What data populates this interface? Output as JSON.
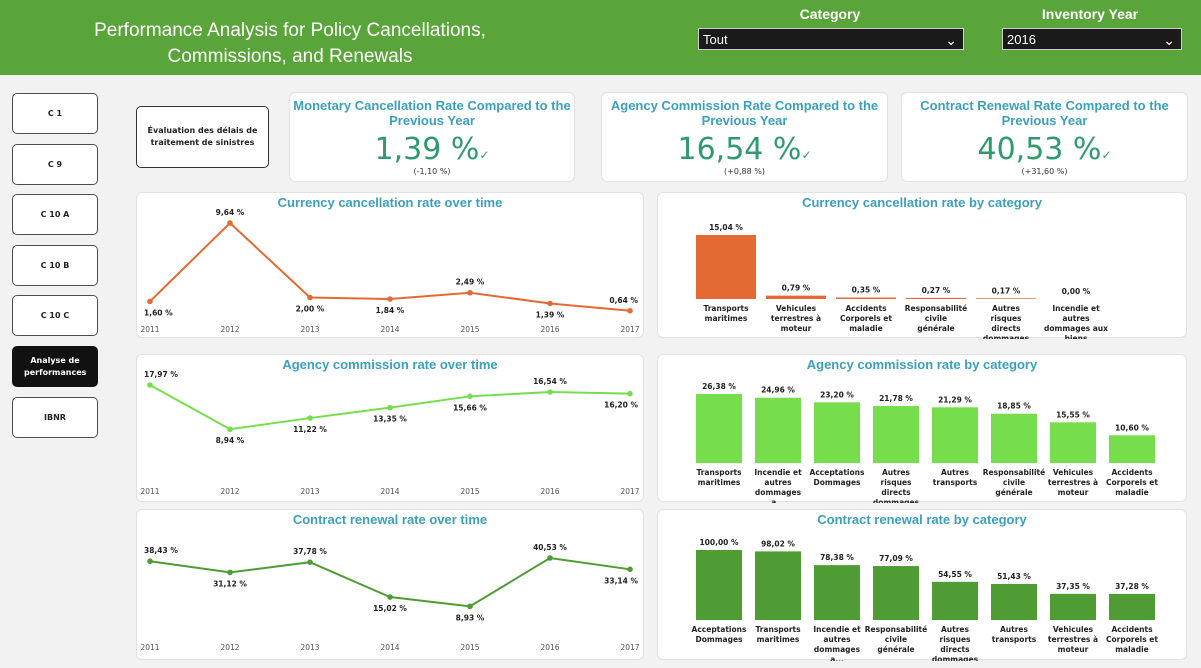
{
  "header": {
    "title_line1": "Performance Analysis for Policy Cancellations,",
    "title_line2": "Commissions, and Renewals",
    "category_label": "Category",
    "category_value": "Tout",
    "year_label": "Inventory Year",
    "year_value": "2016"
  },
  "nav": [
    "C 1",
    "C 9",
    "C 10 A",
    "C 10 B",
    "C 10 C",
    "Analyse de performances",
    "IBNR"
  ],
  "eval_button": "Évaluation des délais de traitement de sinistres",
  "kpis": [
    {
      "title": "Monetary Cancellation Rate Compared to the Previous Year",
      "value": "1,39 %",
      "delta": "(-1,10 %)"
    },
    {
      "title": "Agency Commission Rate Compared to the Previous Year",
      "value": "16,54 %",
      "delta": "(+0,88 %)"
    },
    {
      "title": "Contract Renewal Rate Compared to the Previous Year",
      "value": "40,53 %",
      "delta": "(+31,60 %)"
    }
  ],
  "colors": {
    "header": "#5aa53a",
    "cancel": "#e46a33",
    "commission": "#76de4c",
    "renewal": "#4f9c35",
    "title": "#3ba0bd",
    "kpi": "#2f9b6c"
  },
  "chart_data": [
    {
      "id": "cancel_time",
      "type": "line",
      "title": "Currency cancellation rate over time",
      "x": [
        "2011",
        "2012",
        "2013",
        "2014",
        "2015",
        "2016",
        "2017"
      ],
      "values": [
        1.6,
        9.64,
        2.0,
        1.84,
        2.49,
        1.39,
        0.64
      ],
      "labels": [
        "1,60 %",
        "9,64 %",
        "2,00 %",
        "1,84 %",
        "2,49 %",
        "1,39 %",
        "0,64 %"
      ],
      "color": "#e46a33"
    },
    {
      "id": "cancel_cat",
      "type": "bar",
      "title": "Currency cancellation rate by category",
      "categories": [
        "Transports maritimes",
        "Vehicules terrestres à moteur",
        "Accidents Corporels et maladie",
        "Responsabilité civile générale",
        "Autres risques directs dommages",
        "Incendie et autres dommages aux biens"
      ],
      "values": [
        15.04,
        0.79,
        0.35,
        0.27,
        0.17,
        0.0
      ],
      "labels": [
        "15,04 %",
        "0,79 %",
        "0,35 %",
        "0,27 %",
        "0,17 %",
        "0,00 %"
      ],
      "color": "#e46a33"
    },
    {
      "id": "comm_time",
      "type": "line",
      "title": "Agency commission rate over time",
      "x": [
        "2011",
        "2012",
        "2013",
        "2014",
        "2015",
        "2016",
        "2017"
      ],
      "values": [
        17.97,
        8.94,
        11.22,
        13.35,
        15.66,
        16.54,
        16.2
      ],
      "labels": [
        "17,97 %",
        "8,94 %",
        "11,22 %",
        "13,35 %",
        "15,66 %",
        "16,54 %",
        "16,20 %"
      ],
      "color": "#76de4c"
    },
    {
      "id": "comm_cat",
      "type": "bar",
      "title": "Agency commission rate by category",
      "categories": [
        "Transports maritimes",
        "Incendie et autres dommages a...",
        "Acceptations Dommages",
        "Autres risques directs dommages",
        "Autres transports",
        "Responsabilité civile générale",
        "Vehicules terrestres à moteur",
        "Accidents Corporels et maladie"
      ],
      "values": [
        26.38,
        24.96,
        23.2,
        21.78,
        21.29,
        18.85,
        15.55,
        10.6
      ],
      "labels": [
        "26,38 %",
        "24,96 %",
        "23,20 %",
        "21,78 %",
        "21,29 %",
        "18,85 %",
        "15,55 %",
        "10,60 %"
      ],
      "color": "#76de4c"
    },
    {
      "id": "renew_time",
      "type": "line",
      "title": "Contract renewal rate over time",
      "x": [
        "2011",
        "2012",
        "2013",
        "2014",
        "2015",
        "2016",
        "2017"
      ],
      "values": [
        38.43,
        31.12,
        37.78,
        15.02,
        8.93,
        40.53,
        33.14
      ],
      "labels": [
        "38,43 %",
        "31,12 %",
        "37,78 %",
        "15,02 %",
        "8,93 %",
        "40,53 %",
        "33,14 %"
      ],
      "color": "#4f9c35"
    },
    {
      "id": "renew_cat",
      "type": "bar",
      "title": "Contract renewal rate by category",
      "categories": [
        "Acceptations Dommages",
        "Transports maritimes",
        "Incendie et autres dommages a...",
        "Responsabilité civile générale",
        "Autres risques directs dommages",
        "Autres transports",
        "Vehicules terrestres à moteur",
        "Accidents Corporels et maladie"
      ],
      "values": [
        100.0,
        98.02,
        78.38,
        77.09,
        54.55,
        51.43,
        37.35,
        37.28
      ],
      "labels": [
        "100,00 %",
        "98,02 %",
        "78,38 %",
        "77,09 %",
        "54,55 %",
        "51,43 %",
        "37,35 %",
        "37,28 %"
      ],
      "color": "#4f9c35"
    }
  ]
}
